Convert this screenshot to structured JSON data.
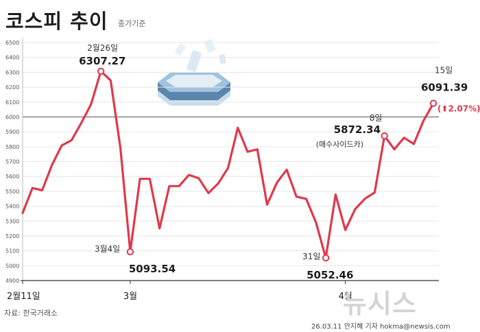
{
  "title": "코스피 추이",
  "subtitle": "종가기준",
  "source": "자료: 한국거래소",
  "credit": "26.03.11 안지혜 기자 hokma@newsis.com",
  "logo_text": "뉴시스",
  "colors": {
    "line": "#e0384a",
    "text": "#222222",
    "up": "#e0384a",
    "grid": "#e6e6e6",
    "baseline": "#555555"
  },
  "chart_data": {
    "type": "line",
    "title": "코스피 추이",
    "subtitle": "종가기준",
    "ylim": [
      4900,
      6500
    ],
    "yticks": [
      4900,
      5000,
      5100,
      5200,
      5300,
      5400,
      5500,
      5600,
      5700,
      5800,
      5900,
      6000,
      6100,
      6200,
      6300,
      6400,
      6500
    ],
    "reference_line": 6000,
    "grid": true,
    "xtick_labels": [
      {
        "index": 0,
        "label": "2월11일"
      },
      {
        "index": 11,
        "label": "3월"
      },
      {
        "index": 33,
        "label": "4월"
      }
    ],
    "values": [
      5354,
      5522,
      5507,
      5677,
      5808,
      5843,
      5960,
      6085,
      6307.27,
      6245,
      5791,
      5093.54,
      5584,
      5584,
      5251,
      5535,
      5535,
      5610,
      5588,
      5488,
      5553,
      5656,
      5927,
      5766,
      5782,
      5410,
      5558,
      5645,
      5464,
      5449,
      5289,
      5052.46,
      5478,
      5240,
      5380,
      5450,
      5492,
      5872.34,
      5782,
      5860,
      5818,
      5975,
      6091.39
    ],
    "annotations": [
      {
        "index": 8,
        "date": "2월26일",
        "value": "6307.27",
        "note": ""
      },
      {
        "index": 11,
        "date": "3월4일",
        "value": "5093.54",
        "note": ""
      },
      {
        "index": 31,
        "date": "31일",
        "value": "5052.46",
        "note": ""
      },
      {
        "index": 37,
        "date": "8일",
        "value": "5872.34",
        "note": "(매수사이드카)"
      },
      {
        "index": 42,
        "date": "15일",
        "value": "6091.39",
        "note": ""
      }
    ],
    "change": {
      "symbol": "⬆",
      "value": "2.07%"
    }
  }
}
